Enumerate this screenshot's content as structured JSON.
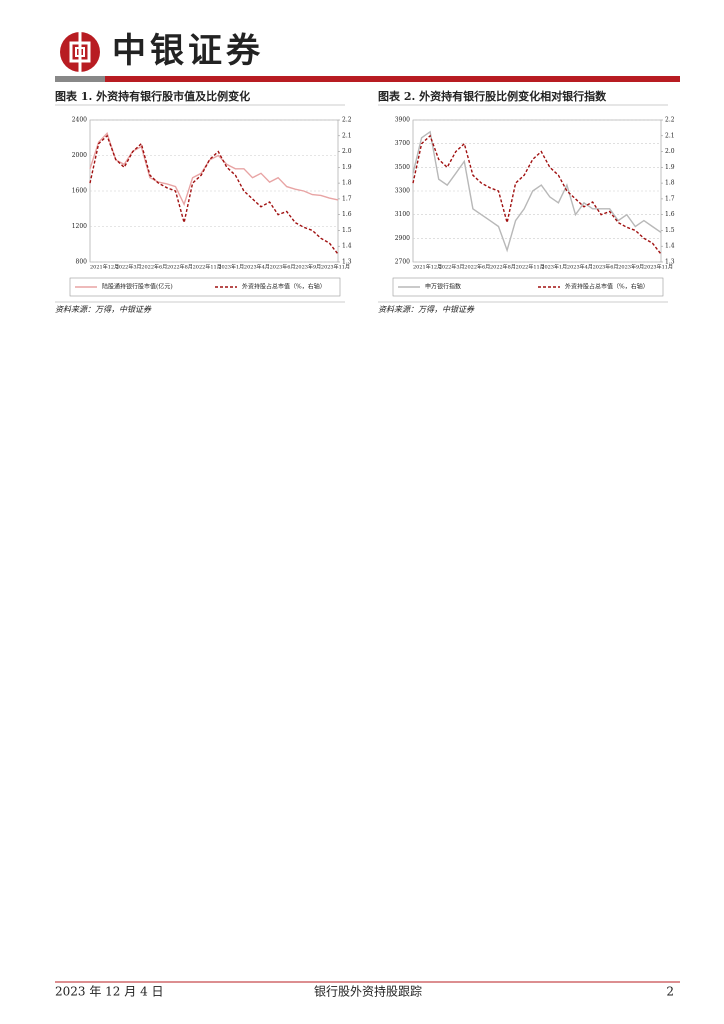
{
  "header": {
    "brand": "中银证券"
  },
  "chart_data": [
    {
      "type": "line",
      "title": "图表 1. 外资持有银行股市值及比例变化",
      "source": "资料来源：万得，中银证券",
      "categories": [
        "2021年12月",
        null,
        null,
        "2022年3月",
        null,
        null,
        "2022年6月",
        null,
        null,
        "2022年8月",
        null,
        null,
        "2022年11月",
        null,
        null,
        "2023年1月",
        null,
        null,
        "2023年4月",
        null,
        null,
        "2023年6月",
        null,
        null,
        "2023年9月",
        null,
        null,
        "2023年11月",
        null,
        null
      ],
      "ylim": [
        800,
        2400
      ],
      "yticks": [
        800,
        1200,
        1600,
        2000,
        2400
      ],
      "y2lim": [
        1.3,
        2.2
      ],
      "y2ticks": [
        1.3,
        1.4,
        1.5,
        1.6,
        1.7,
        1.8,
        1.9,
        {
          "value": 2,
          "label": "2.0"
        },
        2.1,
        2.2
      ],
      "grid": true,
      "series": [
        {
          "name": "陆股通持银行股市值(亿元)",
          "color": "#e8a4a4",
          "dashed": false,
          "values": [
            1850,
            2150,
            2250,
            1950,
            1900,
            2050,
            2100,
            1750,
            1700,
            1680,
            1650,
            1450,
            1750,
            1800,
            1950,
            2000,
            1900,
            1850,
            1850,
            1750,
            1800,
            1700,
            1750,
            1650,
            1620,
            1600,
            1560,
            1550,
            1520,
            1500
          ]
        },
        {
          "name": "外资持股占总市值（%，右轴）",
          "color": "#a01010",
          "dashed": true,
          "axis": "y2",
          "values": [
            1.8,
            2.05,
            2.1,
            1.95,
            1.9,
            2.0,
            2.05,
            1.85,
            1.8,
            1.77,
            1.75,
            1.55,
            1.8,
            1.85,
            1.95,
            2.0,
            1.9,
            1.85,
            1.75,
            1.7,
            1.65,
            1.68,
            1.6,
            1.62,
            1.55,
            1.52,
            1.5,
            1.45,
            1.42,
            1.35
          ]
        }
      ]
    },
    {
      "type": "line",
      "title": "图表 2. 外资持有银行股比例变化相对银行指数",
      "source": "资料来源：万得，中银证券",
      "categories": [
        "2021年12月",
        null,
        null,
        "2022年3月",
        null,
        null,
        "2022年6月",
        null,
        null,
        "2022年8月",
        null,
        null,
        "2022年11月",
        null,
        null,
        "2023年1月",
        null,
        null,
        "2023年4月",
        null,
        null,
        "2023年6月",
        null,
        null,
        "2023年9月",
        null,
        null,
        "2023年11月",
        null,
        null
      ],
      "ylim": [
        2700,
        3900
      ],
      "yticks": [
        2700,
        2900,
        3100,
        3300,
        3500,
        3700,
        3900
      ],
      "y2lim": [
        1.3,
        2.2
      ],
      "y2ticks": [
        1.3,
        1.4,
        1.5,
        1.6,
        1.7,
        1.8,
        1.9,
        {
          "value": 2,
          "label": "2.0"
        },
        2.1,
        2.2
      ],
      "grid": true,
      "series": [
        {
          "name": "申万银行指数",
          "color": "#b8b8b8",
          "dashed": false,
          "values": [
            3450,
            3750,
            3800,
            3400,
            3350,
            3450,
            3550,
            3150,
            3100,
            3050,
            3000,
            2800,
            3050,
            3150,
            3300,
            3350,
            3250,
            3200,
            3350,
            3100,
            3200,
            3150,
            3150,
            3150,
            3050,
            3100,
            3000,
            3050,
            3000,
            2950
          ]
        },
        {
          "name": "外资持股占总市值（%，右轴）",
          "color": "#a01010",
          "dashed": true,
          "axis": "y2",
          "values": [
            1.8,
            2.05,
            2.1,
            1.95,
            1.9,
            2.0,
            2.05,
            1.85,
            1.8,
            1.77,
            1.75,
            1.55,
            1.8,
            1.85,
            1.95,
            2.0,
            1.9,
            1.85,
            1.75,
            1.7,
            1.65,
            1.68,
            1.6,
            1.62,
            1.55,
            1.52,
            1.5,
            1.45,
            1.42,
            1.35
          ]
        }
      ]
    }
  ],
  "footer": {
    "date": "2023 年 12 月 4 日",
    "topic": "银行股外资持股跟踪",
    "page": "2"
  }
}
